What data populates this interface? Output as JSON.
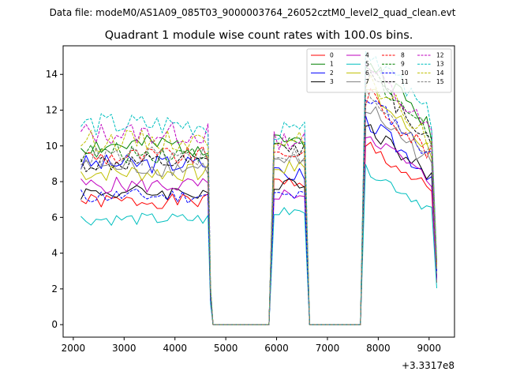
{
  "figure": {
    "suptitle": "Data file: modeM0/AS1A09_085T03_9000003764_26052cztM0_level2_quad_clean.evt"
  },
  "chart_data": {
    "type": "line",
    "title": "Quadrant 1 module wise count rates with 100.0s bins.",
    "xlabel": "",
    "ylabel": "",
    "x_offset_label": "+3.3317e8",
    "xlim": [
      1800,
      9500
    ],
    "ylim": [
      -0.7,
      15.6
    ],
    "xticks": [
      2000,
      3000,
      4000,
      5000,
      6000,
      7000,
      8000,
      9000
    ],
    "yticks": [
      0,
      2,
      4,
      6,
      8,
      10,
      12,
      14
    ],
    "grid": false,
    "legend": {
      "placement": "top-right",
      "columns": 4
    },
    "x": [
      2150,
      2250,
      2350,
      2450,
      2550,
      2650,
      2750,
      2850,
      2950,
      3050,
      3150,
      3250,
      3350,
      3450,
      3550,
      3650,
      3750,
      3850,
      3950,
      4050,
      4150,
      4250,
      4350,
      4450,
      4550,
      4650,
      4700,
      4750,
      4850,
      4950,
      5050,
      5150,
      5250,
      5350,
      5450,
      5550,
      5650,
      5750,
      5850,
      5950,
      6050,
      6150,
      6250,
      6350,
      6450,
      6550,
      6650,
      6750,
      6850,
      6950,
      7050,
      7150,
      7250,
      7350,
      7450,
      7550,
      7650,
      7750,
      7850,
      7950,
      8050,
      8150,
      8250,
      8350,
      8450,
      8550,
      8650,
      8750,
      8850,
      8950,
      9050,
      9150
    ],
    "series": [
      {
        "name": "0",
        "color": "#ff0000",
        "dash": "solid",
        "level": 6.9,
        "post1": 8.0,
        "post2": 8.4,
        "seed": 1
      },
      {
        "name": "1",
        "color": "#008000",
        "dash": "solid",
        "level": 10.0,
        "post1": 10.3,
        "post2": 12.4,
        "seed": 2
      },
      {
        "name": "2",
        "color": "#0000ff",
        "dash": "solid",
        "level": 9.0,
        "post1": 8.4,
        "post2": 9.5,
        "seed": 3
      },
      {
        "name": "3",
        "color": "#000000",
        "dash": "solid",
        "level": 7.4,
        "post1": 7.9,
        "post2": 9.3,
        "seed": 4
      },
      {
        "name": "4",
        "color": "#bf00bf",
        "dash": "solid",
        "level": 7.8,
        "post1": 7.3,
        "post2": 9.0,
        "seed": 5
      },
      {
        "name": "5",
        "color": "#00bfbf",
        "dash": "solid",
        "level": 5.9,
        "post1": 6.3,
        "post2": 7.3,
        "seed": 6
      },
      {
        "name": "6",
        "color": "#bfbf00",
        "dash": "solid",
        "level": 8.5,
        "post1": 8.8,
        "post2": 11.0,
        "seed": 7
      },
      {
        "name": "7",
        "color": "#808080",
        "dash": "solid",
        "level": 8.8,
        "post1": 9.3,
        "post2": 10.2,
        "seed": 8
      },
      {
        "name": "8",
        "color": "#ff0000",
        "dash": "dashed",
        "level": 9.4,
        "post1": 9.6,
        "post2": 10.8,
        "seed": 9
      },
      {
        "name": "9",
        "color": "#008000",
        "dash": "dashed",
        "level": 9.6,
        "post1": 10.0,
        "post2": 12.0,
        "seed": 10
      },
      {
        "name": "10",
        "color": "#0000ff",
        "dash": "dashed",
        "level": 7.2,
        "post1": 7.2,
        "post2": 10.7,
        "seed": 11
      },
      {
        "name": "11",
        "color": "#000000",
        "dash": "dashed",
        "level": 9.0,
        "post1": 9.8,
        "post2": 11.7,
        "seed": 12
      },
      {
        "name": "12",
        "color": "#bf00bf",
        "dash": "dashed",
        "level": 10.7,
        "post1": 10.3,
        "post2": 12.1,
        "seed": 13
      },
      {
        "name": "13",
        "color": "#00bfbf",
        "dash": "dashed",
        "level": 11.2,
        "post1": 10.8,
        "post2": 13.0,
        "seed": 14
      },
      {
        "name": "14",
        "color": "#bfbf00",
        "dash": "dashed",
        "level": 10.3,
        "post1": 10.4,
        "post2": 11.6,
        "seed": 15
      },
      {
        "name": "15",
        "color": "#808080",
        "dash": "dashed",
        "level": 9.4,
        "post1": 9.5,
        "post2": 10.9,
        "seed": 16
      }
    ]
  }
}
